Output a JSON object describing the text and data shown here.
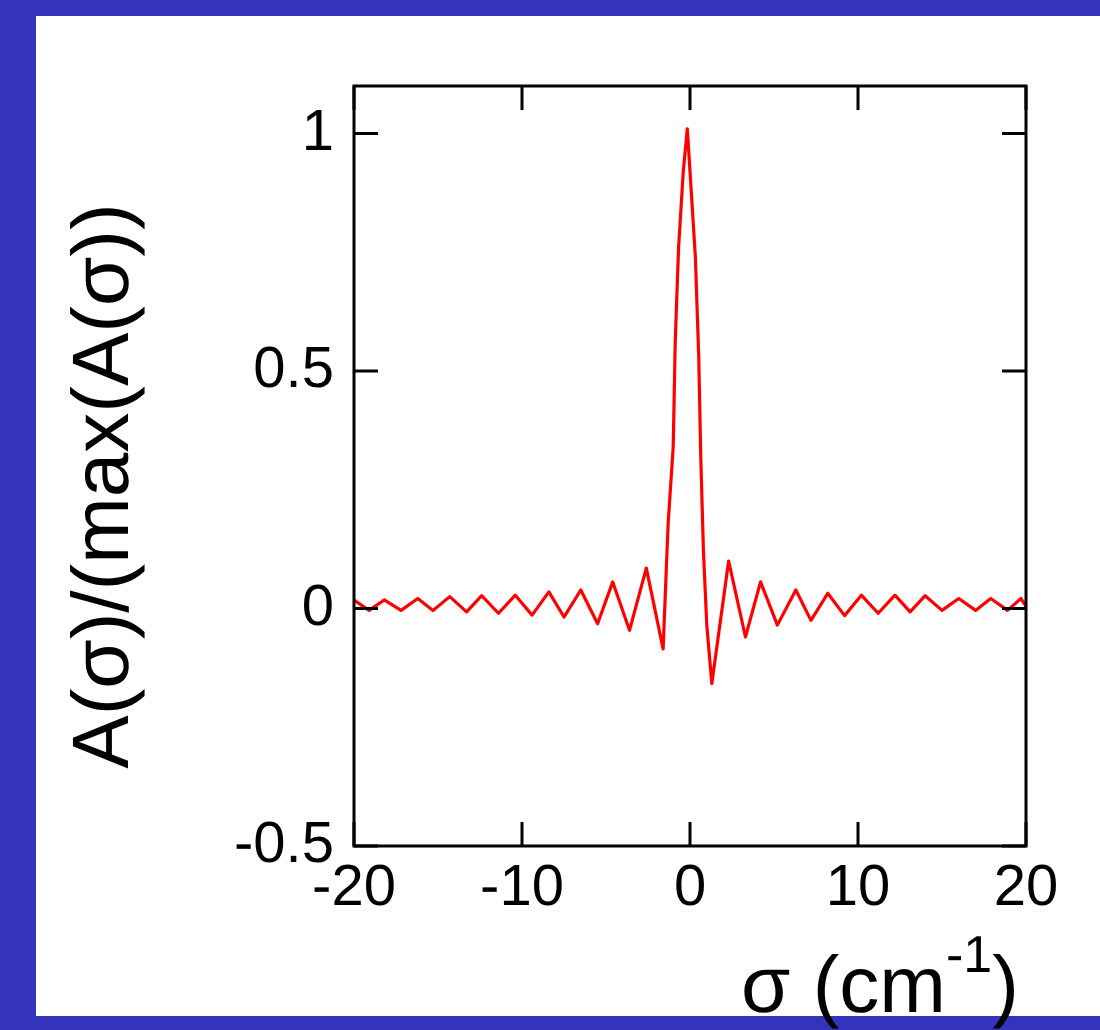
{
  "chart_data": {
    "type": "line",
    "xlabel": "σ (cm$^{-1}$)",
    "ylabel": "A(σ)/(max(A(σ))",
    "x": [
      -20,
      -19.1,
      -18.2,
      -17.2,
      -16.2,
      -15.3,
      -14.3,
      -13.3,
      -12.4,
      -11.4,
      -10.4,
      -9.4,
      -8.4,
      -7.5,
      -6.5,
      -5.5,
      -4.6,
      -3.6,
      -2.6,
      -1.6,
      -1.3,
      -1,
      -0.88,
      -0.68,
      -0.4,
      -0.16,
      0.32,
      0.52,
      0.64,
      0.8,
      1,
      1.3,
      2.3,
      3.3,
      4.2,
      5.2,
      6.3,
      7.2,
      8.2,
      9.2,
      10.2,
      11.2,
      12.2,
      13.1,
      14,
      15,
      16,
      17,
      17.9,
      18.9,
      19.7,
      20
    ],
    "values": [
      0.018,
      -0.004,
      0.018,
      -0.004,
      0.021,
      -0.004,
      0.025,
      -0.007,
      0.027,
      -0.01,
      0.028,
      -0.014,
      0.035,
      -0.018,
      0.039,
      -0.032,
      0.056,
      -0.046,
      0.085,
      -0.085,
      0.18,
      0.34,
      0.56,
      0.76,
      0.92,
      1.01,
      0.74,
      0.53,
      0.32,
      0.12,
      -0.035,
      -0.158,
      0.1,
      -0.06,
      0.056,
      -0.035,
      0.039,
      -0.025,
      0.032,
      -0.015,
      0.028,
      -0.01,
      0.028,
      -0.007,
      0.027,
      -0.004,
      0.021,
      -0.004,
      0.021,
      -0.004,
      0.021,
      0.005
    ],
    "color": "#ff0000",
    "xlim": [
      -20,
      20
    ],
    "xticks": [
      -20,
      -10,
      0,
      10,
      20
    ],
    "ylim": [
      -0.5,
      1.1
    ],
    "yticks": [
      -0.5,
      0,
      0.5,
      1
    ],
    "grid": false,
    "legend": false,
    "marker": "none",
    "line_style": "solid"
  }
}
